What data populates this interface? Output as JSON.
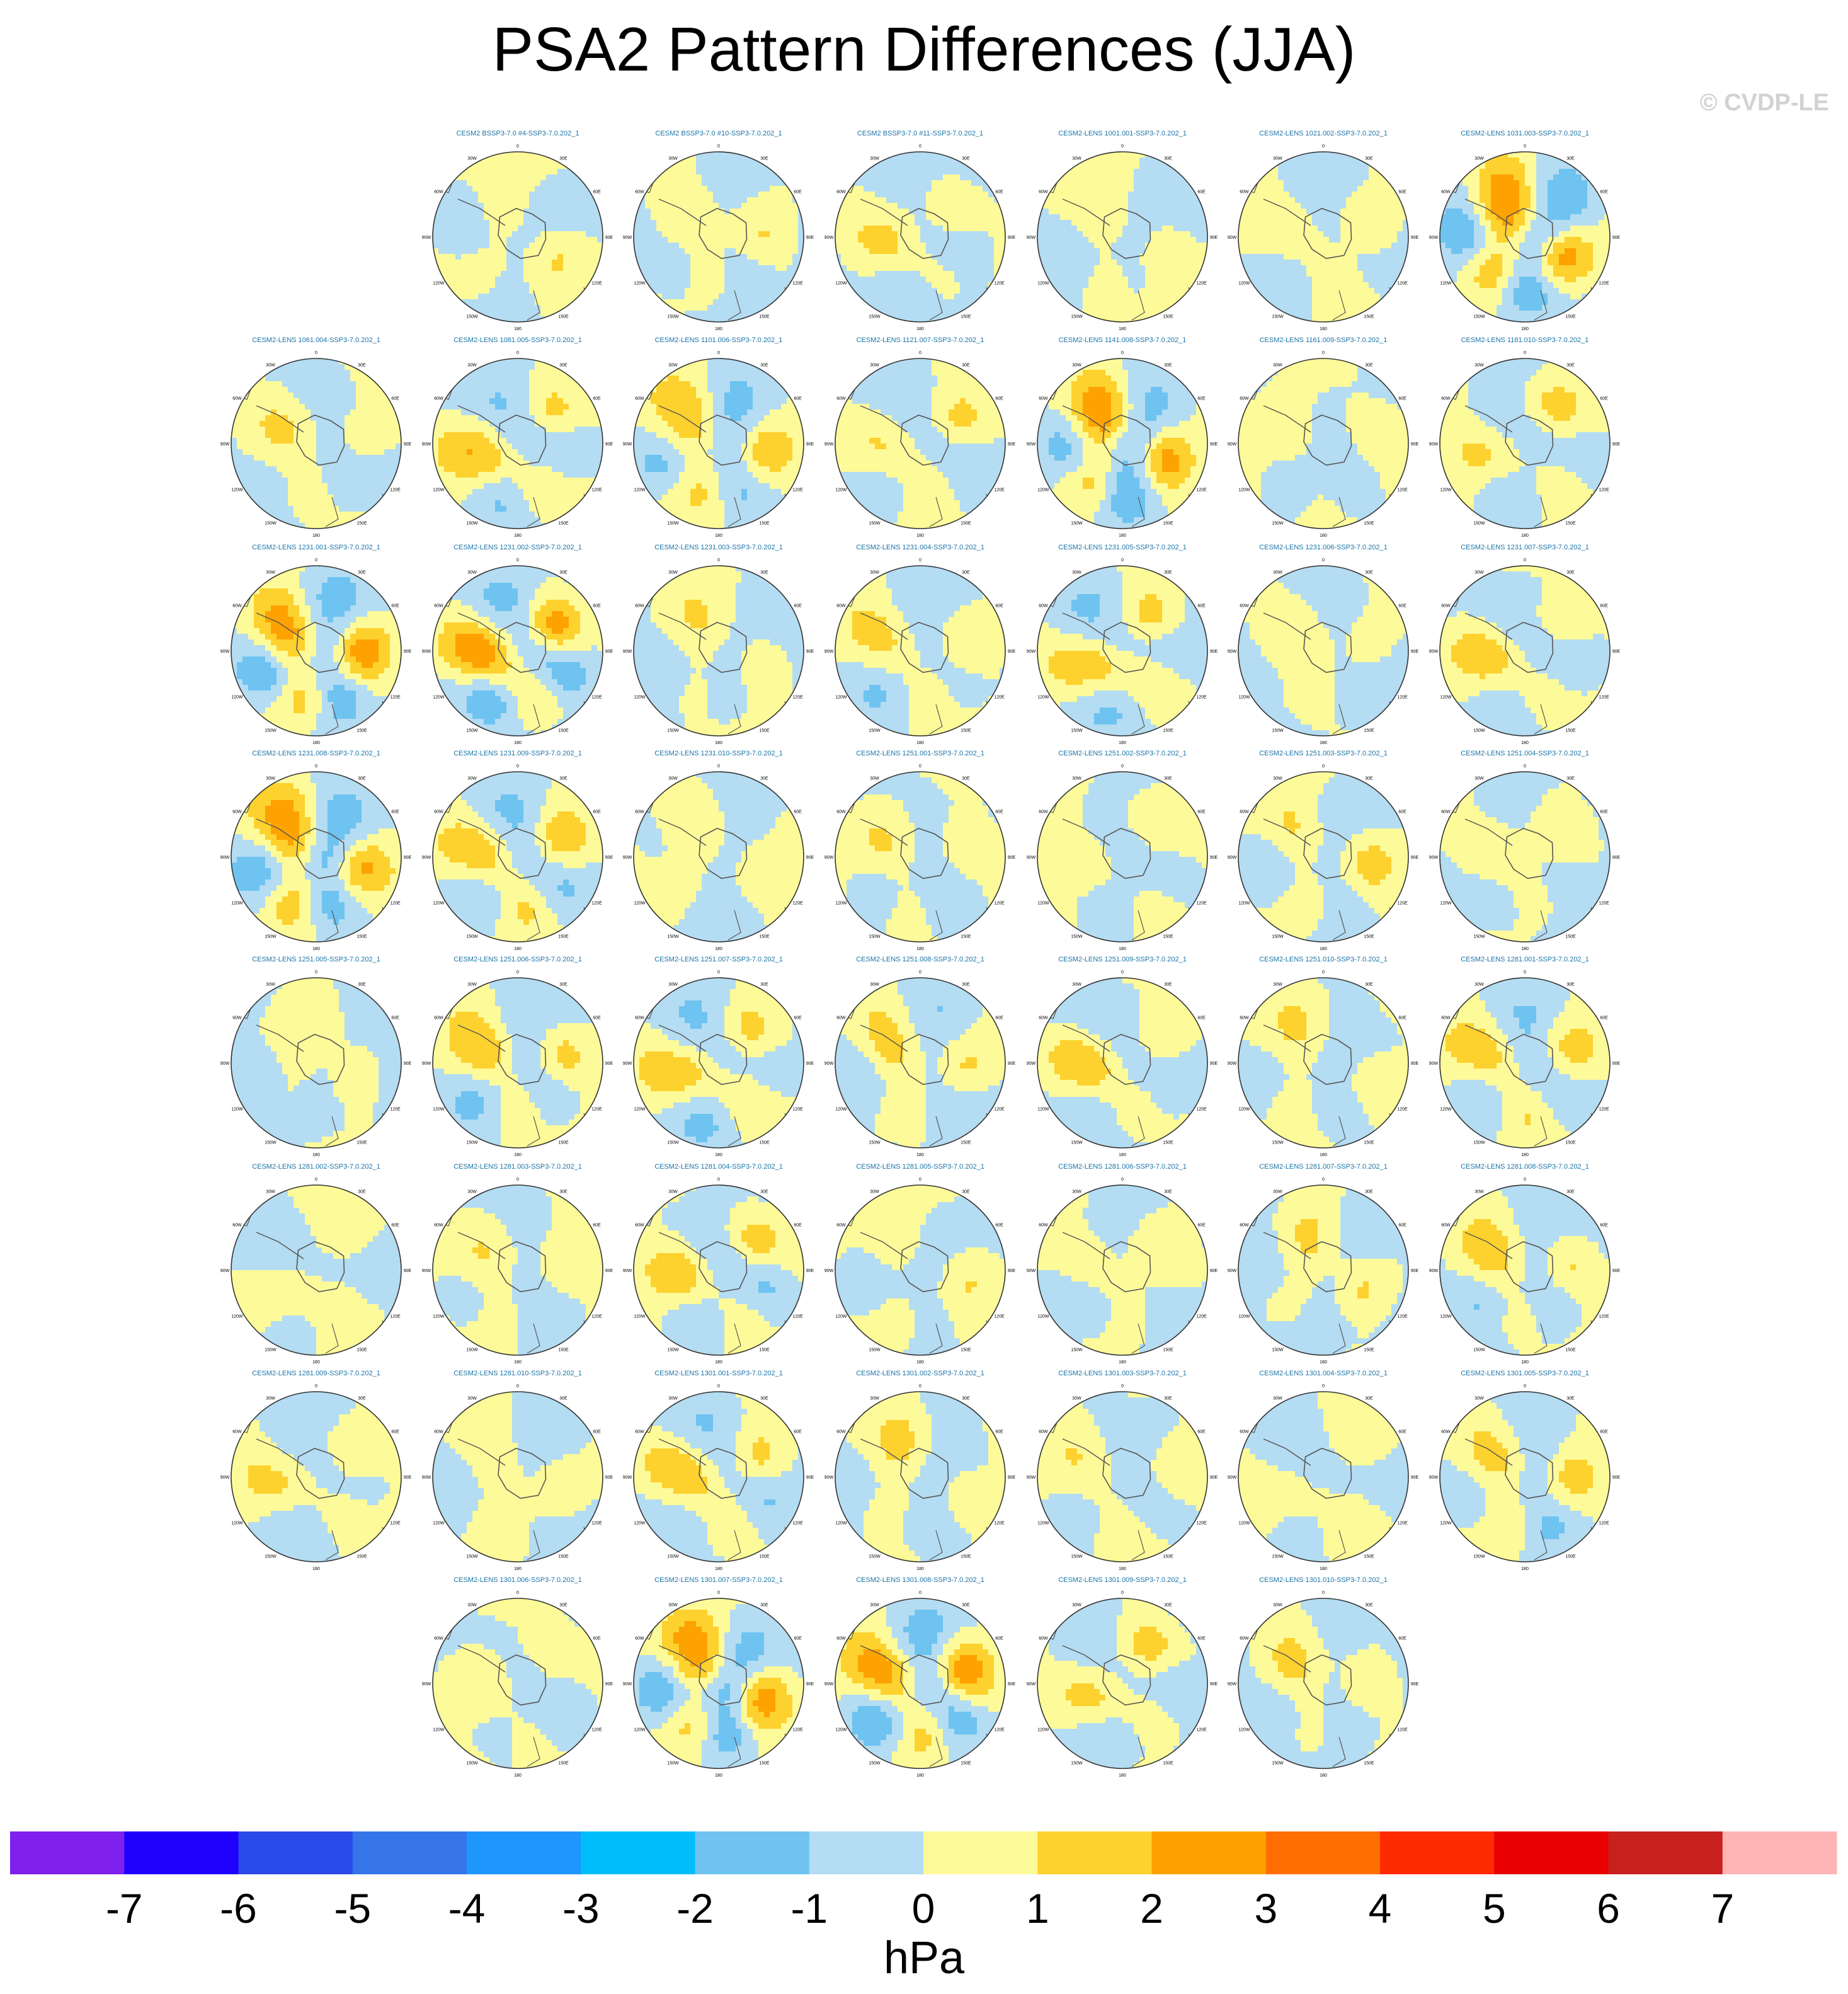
{
  "title": "PSA2 Pattern Differences (JJA)",
  "copyright": "© CVDP-LE",
  "colors": {
    "map_bg": "#fdfa99",
    "ocean_tint": "#b4dcf2",
    "panel_title": "#1a74a8",
    "coast": "#555555",
    "rim": "#333333"
  },
  "map": {
    "projection": "south polar stereographic",
    "longitude_labels": [
      "0",
      "30E",
      "60E",
      "90E",
      "120E",
      "150E",
      "180",
      "150W",
      "120W",
      "90W",
      "60W",
      "30W"
    ]
  },
  "chart_data": {
    "type": "contour map panels",
    "variable": "PSA2 pattern difference",
    "season": "JJA",
    "layout": "8 rows x 7 columns",
    "panels": [
      {
        "label": "CESM2 BSSP3-7.0 #4-SSP3-7.0.202_1",
        "row": 0,
        "col": 1,
        "amp": 1.5
      },
      {
        "label": "CESM2 BSSP3-7.0 #10-SSP3-7.0.202_1",
        "row": 0,
        "col": 2,
        "amp": 1.8
      },
      {
        "label": "CESM2 BSSP3-7.0 #11-SSP3-7.0.202_1",
        "row": 0,
        "col": 3,
        "amp": 2.0
      },
      {
        "label": "CESM2-LENS 1001.001-SSP3-7.0.202_1",
        "row": 0,
        "col": 4,
        "amp": 1.2
      },
      {
        "label": "CESM2-LENS 1021.002-SSP3-7.0.202_1",
        "row": 0,
        "col": 5,
        "amp": 1.6
      },
      {
        "label": "CESM2-LENS 1031.003-SSP3-7.0.202_1",
        "row": 0,
        "col": 6,
        "amp": 5.0
      },
      {
        "label": "CESM2-LENS 1061.004-SSP3-7.0.202_1",
        "row": 1,
        "col": 0,
        "amp": 1.6
      },
      {
        "label": "CESM2-LENS 1081.005-SSP3-7.0.202_1",
        "row": 1,
        "col": 1,
        "amp": 3.0
      },
      {
        "label": "CESM2-LENS 1101.006-SSP3-7.0.202_1",
        "row": 1,
        "col": 2,
        "amp": 3.4
      },
      {
        "label": "CESM2-LENS 1121.007-SSP3-7.0.202_1",
        "row": 1,
        "col": 3,
        "amp": 2.2
      },
      {
        "label": "CESM2-LENS 1141.008-SSP3-7.0.202_1",
        "row": 1,
        "col": 4,
        "amp": 5.0
      },
      {
        "label": "CESM2-LENS 1161.009-SSP3-7.0.202_1",
        "row": 1,
        "col": 5,
        "amp": 1.0
      },
      {
        "label": "CESM2-LENS 1181.010-SSP3-7.0.202_1",
        "row": 1,
        "col": 6,
        "amp": 2.4
      },
      {
        "label": "CESM2-LENS 1231.001-SSP3-7.0.202_1",
        "row": 2,
        "col": 0,
        "amp": 5.0
      },
      {
        "label": "CESM2-LENS 1231.002-SSP3-7.0.202_1",
        "row": 2,
        "col": 1,
        "amp": 5.0
      },
      {
        "label": "CESM2-LENS 1231.003-SSP3-7.0.202_1",
        "row": 2,
        "col": 2,
        "amp": 1.6
      },
      {
        "label": "CESM2-LENS 1231.004-SSP3-7.0.202_1",
        "row": 2,
        "col": 3,
        "amp": 2.2
      },
      {
        "label": "CESM2-LENS 1231.005-SSP3-7.0.202_1",
        "row": 2,
        "col": 4,
        "amp": 2.8
      },
      {
        "label": "CESM2-LENS 1231.006-SSP3-7.0.202_1",
        "row": 2,
        "col": 5,
        "amp": 1.0
      },
      {
        "label": "CESM2-LENS 1231.007-SSP3-7.0.202_1",
        "row": 2,
        "col": 6,
        "amp": 2.4
      },
      {
        "label": "CESM2-LENS 1231.008-SSP3-7.0.202_1",
        "row": 3,
        "col": 0,
        "amp": 4.6
      },
      {
        "label": "CESM2-LENS 1231.009-SSP3-7.0.202_1",
        "row": 3,
        "col": 1,
        "amp": 3.2
      },
      {
        "label": "CESM2-LENS 1231.010-SSP3-7.0.202_1",
        "row": 3,
        "col": 2,
        "amp": 1.2
      },
      {
        "label": "CESM2-LENS 1251.001-SSP3-7.0.202_1",
        "row": 3,
        "col": 3,
        "amp": 2.0
      },
      {
        "label": "CESM2-LENS 1251.002-SSP3-7.0.202_1",
        "row": 3,
        "col": 4,
        "amp": 1.6
      },
      {
        "label": "CESM2-LENS 1251.003-SSP3-7.0.202_1",
        "row": 3,
        "col": 5,
        "amp": 2.4
      },
      {
        "label": "CESM2-LENS 1251.004-SSP3-7.0.202_1",
        "row": 3,
        "col": 6,
        "amp": 1.6
      },
      {
        "label": "CESM2-LENS 1251.005-SSP3-7.0.202_1",
        "row": 4,
        "col": 0,
        "amp": 1.2
      },
      {
        "label": "CESM2-LENS 1251.006-SSP3-7.0.202_1",
        "row": 4,
        "col": 1,
        "amp": 3.0
      },
      {
        "label": "CESM2-LENS 1251.007-SSP3-7.0.202_1",
        "row": 4,
        "col": 2,
        "amp": 2.8
      },
      {
        "label": "CESM2-LENS 1251.008-SSP3-7.0.202_1",
        "row": 4,
        "col": 3,
        "amp": 2.4
      },
      {
        "label": "CESM2-LENS 1251.009-SSP3-7.0.202_1",
        "row": 4,
        "col": 4,
        "amp": 2.6
      },
      {
        "label": "CESM2-LENS 1251.010-SSP3-7.0.202_1",
        "row": 4,
        "col": 5,
        "amp": 1.6
      },
      {
        "label": "CESM2-LENS 1281.001-SSP3-7.0.202_1",
        "row": 4,
        "col": 6,
        "amp": 2.8
      },
      {
        "label": "CESM2-LENS 1281.002-SSP3-7.0.202_1",
        "row": 5,
        "col": 0,
        "amp": 1.0
      },
      {
        "label": "CESM2-LENS 1281.003-SSP3-7.0.202_1",
        "row": 5,
        "col": 1,
        "amp": 2.0
      },
      {
        "label": "CESM2-LENS 1281.004-SSP3-7.0.202_1",
        "row": 5,
        "col": 2,
        "amp": 3.0
      },
      {
        "label": "CESM2-LENS 1281.005-SSP3-7.0.202_1",
        "row": 5,
        "col": 3,
        "amp": 1.6
      },
      {
        "label": "CESM2-LENS 1281.006-SSP3-7.0.202_1",
        "row": 5,
        "col": 4,
        "amp": 1.2
      },
      {
        "label": "CESM2-LENS 1281.007-SSP3-7.0.202_1",
        "row": 5,
        "col": 5,
        "amp": 2.2
      },
      {
        "label": "CESM2-LENS 1281.008-SSP3-7.0.202_1",
        "row": 5,
        "col": 6,
        "amp": 2.6
      },
      {
        "label": "CESM2-LENS 1281.009-SSP3-7.0.202_1",
        "row": 6,
        "col": 0,
        "amp": 1.8
      },
      {
        "label": "CESM2-LENS 1281.010-SSP3-7.0.202_1",
        "row": 6,
        "col": 1,
        "amp": 1.2
      },
      {
        "label": "CESM2-LENS 1301.001-SSP3-7.0.202_1",
        "row": 6,
        "col": 2,
        "amp": 3.0
      },
      {
        "label": "CESM2-LENS 1301.002-SSP3-7.0.202_1",
        "row": 6,
        "col": 3,
        "amp": 1.8
      },
      {
        "label": "CESM2-LENS 1301.003-SSP3-7.0.202_1",
        "row": 6,
        "col": 4,
        "amp": 1.4
      },
      {
        "label": "CESM2-LENS 1301.004-SSP3-7.0.202_1",
        "row": 6,
        "col": 5,
        "amp": 1.0
      },
      {
        "label": "CESM2-LENS 1301.005-SSP3-7.0.202_1",
        "row": 6,
        "col": 6,
        "amp": 2.8
      },
      {
        "label": "CESM2-LENS 1301.006-SSP3-7.0.202_1",
        "row": 7,
        "col": 1,
        "amp": 1.4
      },
      {
        "label": "CESM2-LENS 1301.007-SSP3-7.0.202_1",
        "row": 7,
        "col": 2,
        "amp": 5.0
      },
      {
        "label": "CESM2-LENS 1301.008-SSP3-7.0.202_1",
        "row": 7,
        "col": 3,
        "amp": 5.0
      },
      {
        "label": "CESM2-LENS 1301.009-SSP3-7.0.202_1",
        "row": 7,
        "col": 4,
        "amp": 2.6
      },
      {
        "label": "CESM2-LENS 1301.010-SSP3-7.0.202_1",
        "row": 7,
        "col": 5,
        "amp": 2.2
      }
    ],
    "colorbar": {
      "ticks": [
        "-7",
        "-6",
        "-5",
        "-4",
        "-3",
        "-2",
        "-1",
        "0",
        "1",
        "2",
        "3",
        "4",
        "5",
        "6",
        "7"
      ],
      "colors": [
        "#7f20ec",
        "#1f00fc",
        "#2a49e9",
        "#3574e9",
        "#1f96fb",
        "#00bdfb",
        "#6ec3f0",
        "#b4dcf2",
        "#fdfa99",
        "#fdd12e",
        "#fda201",
        "#fe6e00",
        "#fe2a00",
        "#e80000",
        "#c81f1f",
        "#feb3b4"
      ],
      "units": "hPa"
    }
  }
}
